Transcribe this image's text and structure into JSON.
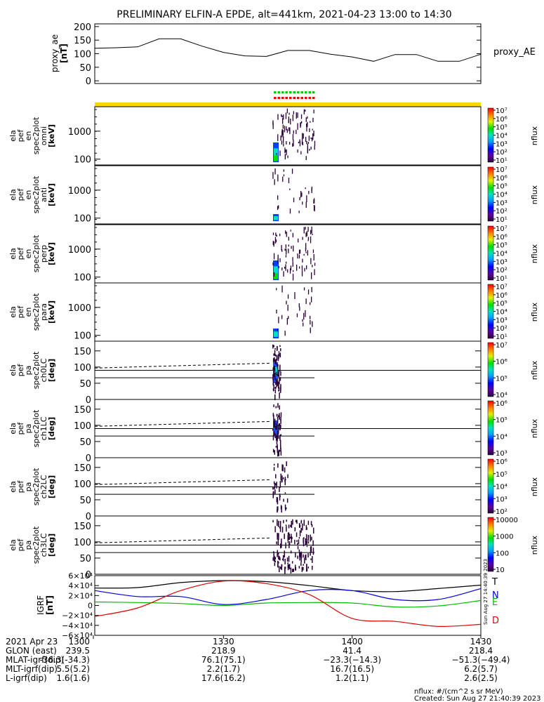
{
  "title": "PRELIMINARY ELFIN-A EPDE, alt=441km, 2021-04-23 13:00 to 14:30",
  "colors": {
    "yellow_bar": "#ffd700",
    "green_marks": "#00cc00",
    "red_marks": "#ee0000",
    "T": "#000000",
    "N": "#0000dd",
    "E": "#00bb00",
    "D": "#dd0000",
    "spec_dark": "#2a0038"
  },
  "proxy": {
    "ylabel_lines": [
      "proxy_ae",
      "[nT]"
    ],
    "legend": "proxy_AE",
    "yticks": [
      "200",
      "150",
      "100",
      "50",
      "0"
    ]
  },
  "spec_panels": [
    {
      "label_lines": [
        "ela",
        "pef",
        "en",
        "spec2plot",
        "omni",
        "[keV]"
      ],
      "yticks": [
        "1000",
        "100"
      ],
      "cbar_label": "nflux",
      "cbar_ticks": [
        "10⁷",
        "10⁶",
        "10⁵",
        "10⁴",
        "10³",
        "10²",
        "10¹"
      ]
    },
    {
      "label_lines": [
        "ela",
        "pef",
        "en",
        "spec2plot",
        "anti",
        "[keV]"
      ],
      "yticks": [
        "1000",
        "100"
      ],
      "cbar_label": "nflux",
      "cbar_ticks": [
        "10⁷",
        "10⁶",
        "10⁵",
        "10⁴",
        "10³",
        "10²",
        "10¹"
      ]
    },
    {
      "label_lines": [
        "ela",
        "pef",
        "en",
        "spec2plot",
        "perp",
        "[keV]"
      ],
      "yticks": [
        "1000",
        "100"
      ],
      "cbar_label": "nflux",
      "cbar_ticks": [
        "10⁷",
        "10⁶",
        "10⁵",
        "10⁴",
        "10³",
        "10²",
        "10¹"
      ]
    },
    {
      "label_lines": [
        "ela",
        "pef",
        "en",
        "spec2plot",
        "para",
        "[keV]"
      ],
      "yticks": [
        "1000",
        "100"
      ],
      "cbar_label": "nflux",
      "cbar_ticks": [
        "10⁷",
        "10⁶",
        "10⁵",
        "10⁴",
        "10³",
        "10²",
        "10¹"
      ]
    }
  ],
  "pa_panels": [
    {
      "label_lines": [
        "ela",
        "pef",
        "pa",
        "spec2plot",
        "ch0LC",
        "[deg]"
      ],
      "yticks": [
        "150",
        "100",
        "50",
        "0"
      ],
      "cbar_label": "nflux",
      "cbar_ticks": [
        "10⁷",
        "10⁶",
        "10⁵",
        "10⁴"
      ]
    },
    {
      "label_lines": [
        "ela",
        "pef",
        "pa",
        "spec2plot",
        "ch1LC",
        "[deg]"
      ],
      "yticks": [
        "150",
        "100",
        "50",
        "0"
      ],
      "cbar_label": "nflux",
      "cbar_ticks": [
        "10⁶",
        "10⁵",
        "10⁴",
        "10³"
      ]
    },
    {
      "label_lines": [
        "ela",
        "pef",
        "pa",
        "spec2plot",
        "ch2LC",
        "[deg]"
      ],
      "yticks": [
        "150",
        "100",
        "50",
        "0"
      ],
      "cbar_label": "nflux",
      "cbar_ticks": [
        "10⁶",
        "10⁵",
        "10⁴",
        "10³",
        "10²"
      ]
    },
    {
      "label_lines": [
        "ela",
        "pef",
        "pa",
        "spec2plot",
        "ch3LC",
        "[deg]"
      ],
      "yticks": [
        "150",
        "100",
        "50",
        "0"
      ],
      "cbar_label": "nflux",
      "cbar_ticks": [
        "10000",
        "1000",
        "100",
        "10"
      ]
    }
  ],
  "igrf": {
    "ylabel_lines": [
      "IGRF",
      "[nT]"
    ],
    "yticks": [
      "6×10⁴",
      "4×10⁴",
      "2×10⁴",
      "0",
      "−2×10⁴",
      "−4×10⁴",
      "−6×10⁴"
    ],
    "legend": [
      "T",
      "N",
      "E",
      "D"
    ],
    "side_note": "Sun Aug 27 14:40:39 2023"
  },
  "orbit": {
    "row_labels": [
      "2021 Apr 23",
      "GLON (east)",
      "MLAT-igrf(dip)",
      "MLT-igrf(dip)",
      "L-igrf(dip)"
    ],
    "columns": [
      {
        "time": "1300",
        "vals": [
          "239.5",
          "-36.3(-34.3)",
          "5.5(5.2)",
          "1.6(1.6)"
        ]
      },
      {
        "time": "1330",
        "vals": [
          "218.9",
          "76.1(75.1)",
          "2.2(1.7)",
          "17.6(16.2)"
        ]
      },
      {
        "time": "1400",
        "vals": [
          "41.4",
          "−23.3(−14.3)",
          "16.7(16.5)",
          "1.2(1.1)"
        ]
      },
      {
        "time": "1430",
        "vals": [
          "218.4",
          "−51.3(−49.4)",
          "6.2(5.7)",
          "2.6(2.5)"
        ]
      }
    ]
  },
  "footer": {
    "nflux_units": "nflux: #/(cm^2 s sr MeV)",
    "created": "Created: Sun Aug 27 21:40:39 2023"
  },
  "chart_data": [
    {
      "type": "line",
      "title": "PRELIMINARY ELFIN-A EPDE, alt=441km, 2021-04-23 13:00 to 14:30",
      "ylabel": "proxy_ae [nT]",
      "xlim": [
        "13:00",
        "14:30"
      ],
      "ylim": [
        0,
        200
      ],
      "series": [
        {
          "name": "proxy_AE",
          "x": [
            "13:00",
            "13:05",
            "13:10",
            "13:15",
            "13:20",
            "13:25",
            "13:30",
            "13:35",
            "13:40",
            "13:45",
            "13:50",
            "13:55",
            "14:00",
            "14:05",
            "14:10",
            "14:15",
            "14:20",
            "14:25",
            "14:30"
          ],
          "values": [
            120,
            122,
            125,
            155,
            155,
            128,
            105,
            92,
            90,
            112,
            112,
            98,
            88,
            72,
            97,
            97,
            72,
            72,
            98
          ]
        }
      ]
    },
    {
      "type": "heatmap",
      "ylabel": "ela pef en spec2plot omni [keV]",
      "yscale": "log",
      "colorbar": "nflux 10^1-10^7"
    },
    {
      "type": "heatmap",
      "ylabel": "ela pef en spec2plot anti [keV]",
      "yscale": "log",
      "colorbar": "nflux 10^1-10^7"
    },
    {
      "type": "heatmap",
      "ylabel": "ela pef en spec2plot perp [keV]",
      "yscale": "log",
      "colorbar": "nflux 10^1-10^7"
    },
    {
      "type": "heatmap",
      "ylabel": "ela pef en spec2plot para [keV]",
      "yscale": "log",
      "colorbar": "nflux 10^1-10^7"
    },
    {
      "type": "heatmap",
      "ylabel": "ela pef pa spec2plot ch0LC [deg]",
      "ylim": [
        0,
        180
      ]
    },
    {
      "type": "heatmap",
      "ylabel": "ela pef pa spec2plot ch1LC [deg]",
      "ylim": [
        0,
        180
      ]
    },
    {
      "type": "heatmap",
      "ylabel": "ela pef pa spec2plot ch2LC [deg]",
      "ylim": [
        0,
        180
      ]
    },
    {
      "type": "heatmap",
      "ylabel": "ela pef pa spec2plot ch3LC [deg]",
      "ylim": [
        0,
        180
      ]
    },
    {
      "type": "line",
      "ylabel": "IGRF [nT]",
      "ylim": [
        -60000,
        60000
      ],
      "x": [
        "13:00",
        "13:10",
        "13:20",
        "13:30",
        "13:40",
        "13:50",
        "14:00",
        "14:10",
        "14:20",
        "14:30"
      ],
      "series": [
        {
          "name": "T",
          "values": [
            35000,
            36000,
            46000,
            50000,
            48000,
            40000,
            30000,
            28000,
            34000,
            41000
          ]
        },
        {
          "name": "N",
          "values": [
            30000,
            18000,
            18000,
            2000,
            12000,
            30000,
            30000,
            12000,
            12000,
            34000
          ]
        },
        {
          "name": "E",
          "values": [
            7000,
            6000,
            4000,
            0,
            5000,
            6000,
            5000,
            -3000,
            -1000,
            10000
          ]
        },
        {
          "name": "D",
          "values": [
            -22000,
            -5000,
            30000,
            49000,
            44000,
            22000,
            -26000,
            -32000,
            -42000,
            -38000
          ]
        }
      ]
    }
  ]
}
